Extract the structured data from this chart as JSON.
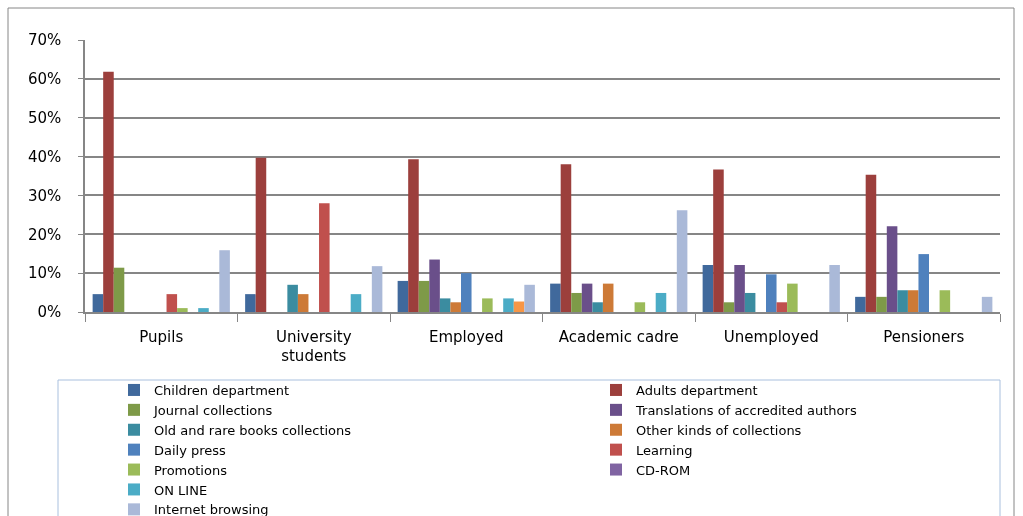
{
  "chart_data": {
    "type": "bar",
    "categories": [
      "Pupils",
      "University students",
      "Employed",
      "Academic cadre",
      "Unemployed",
      "Pensioners"
    ],
    "ylim": [
      0,
      70
    ],
    "yticks": [
      {
        "value": 0,
        "label": "0%"
      },
      {
        "value": 10,
        "label": "10%"
      },
      {
        "value": 20,
        "label": "20%"
      },
      {
        "value": 30,
        "label": "30%"
      },
      {
        "value": 40,
        "label": "40%"
      },
      {
        "value": 50,
        "label": "50%"
      },
      {
        "value": 60,
        "label": "60%"
      },
      {
        "value": 70,
        "label": "70%"
      }
    ],
    "grid": "y",
    "legend": "bottom",
    "series": [
      {
        "name": "Children department",
        "color": "#40699c",
        "values": [
          4.6,
          4.6,
          8.0,
          7.3,
          12.1,
          3.9
        ]
      },
      {
        "name": "Adults department",
        "color": "#9c3f3c",
        "values": [
          61.8,
          39.7,
          39.3,
          38.0,
          36.7,
          35.3
        ]
      },
      {
        "name": "Journal collections",
        "color": "#7e9a48",
        "values": [
          11.4,
          null,
          8.0,
          4.9,
          2.5,
          3.9
        ]
      },
      {
        "name": "Translations of accredited authors",
        "color": "#6a4f8a",
        "values": [
          null,
          null,
          13.5,
          7.3,
          12.1,
          22.1
        ]
      },
      {
        "name": "Old and rare books collections",
        "color": "#3b8ca0",
        "values": [
          null,
          7.0,
          3.5,
          2.5,
          4.9,
          5.6
        ]
      },
      {
        "name": "Other kinds of collections",
        "color": "#cd7a37",
        "values": [
          null,
          4.6,
          2.5,
          7.3,
          null,
          5.6
        ]
      },
      {
        "name": "Daily press",
        "color": "#4f81bd",
        "values": [
          null,
          null,
          10.0,
          null,
          9.7,
          14.9
        ]
      },
      {
        "name": "Learning",
        "color": "#c0504d",
        "values": [
          4.6,
          28.0,
          null,
          null,
          2.5,
          null
        ]
      },
      {
        "name": "Promotions",
        "color": "#9bbb59",
        "values": [
          1.0,
          null,
          3.5,
          2.5,
          7.3,
          5.6
        ]
      },
      {
        "name": "CD-ROM",
        "color": "#8064a2",
        "values": [
          null,
          null,
          null,
          null,
          null,
          null
        ]
      },
      {
        "name": "ON LINE",
        "color": "#4bacc6",
        "values": [
          1.0,
          4.6,
          3.5,
          4.9,
          null,
          null
        ]
      },
      {
        "color": "#f79646",
        "values": [
          null,
          null,
          2.7,
          null,
          null,
          null
        ]
      },
      {
        "name": "Internet browsing",
        "color": "#aab9d8",
        "values": [
          15.9,
          11.8,
          7.0,
          26.2,
          12.1,
          3.9
        ]
      }
    ]
  }
}
